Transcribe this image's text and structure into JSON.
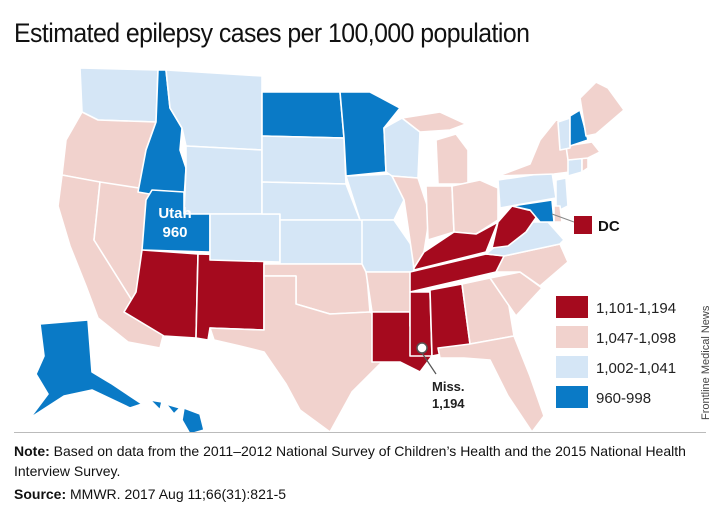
{
  "title": "Estimated epilepsy cases per 100,000 population",
  "colors": {
    "c1": "#a50a1e",
    "c2": "#f1d2cd",
    "c3": "#d5e6f6",
    "c4": "#0a7ac6"
  },
  "legend": [
    {
      "label": "1,101-1,194",
      "color": "#a50a1e"
    },
    {
      "label": "1,047-1,098",
      "color": "#f1d2cd"
    },
    {
      "label": "1,002-1,041",
      "color": "#d5e6f6"
    },
    {
      "label": "960-998",
      "color": "#0a7ac6"
    }
  ],
  "callouts": {
    "utah_name": "Utah",
    "utah_value": "960",
    "dc": "DC",
    "miss_name": "Miss.",
    "miss_value": "1,194"
  },
  "note_label": "Note:",
  "note_text": " Based on data from the 2011–2012 National Survey of Children’s Health and the 2015 National Health Interview Survey.",
  "source_label": "Source:",
  "source_text": " MMWR. 2017 Aug 11;66(31):821-5",
  "credit": "Frontline Medical News",
  "states": {
    "WA": "c3",
    "OR": "c2",
    "CA": "c2",
    "NV": "c2",
    "ID": "c4",
    "MT": "c3",
    "WY": "c3",
    "UT": "c4",
    "AZ": "c1",
    "NM": "c1",
    "CO": "c3",
    "ND": "c4",
    "SD": "c3",
    "NE": "c3",
    "KS": "c3",
    "OK": "c2",
    "TX": "c2",
    "MN": "c4",
    "IA": "c3",
    "MO": "c3",
    "AR": "c2",
    "LA": "c1",
    "WI": "c3",
    "IL": "c2",
    "MI": "c2",
    "IN": "c2",
    "OH": "c2",
    "KY": "c1",
    "TN": "c1",
    "MS": "c1",
    "AL": "c1",
    "GA": "c2",
    "FL": "c2",
    "SC": "c2",
    "NC": "c2",
    "VA": "c3",
    "WV": "c1",
    "PA": "c3",
    "NY": "c2",
    "ME": "c2",
    "VT": "c3",
    "NH": "c4",
    "MA": "c2",
    "RI": "c2",
    "CT": "c3",
    "NJ": "c3",
    "DE": "c2",
    "MD": "c4",
    "AK": "c4",
    "HI": "c4"
  }
}
